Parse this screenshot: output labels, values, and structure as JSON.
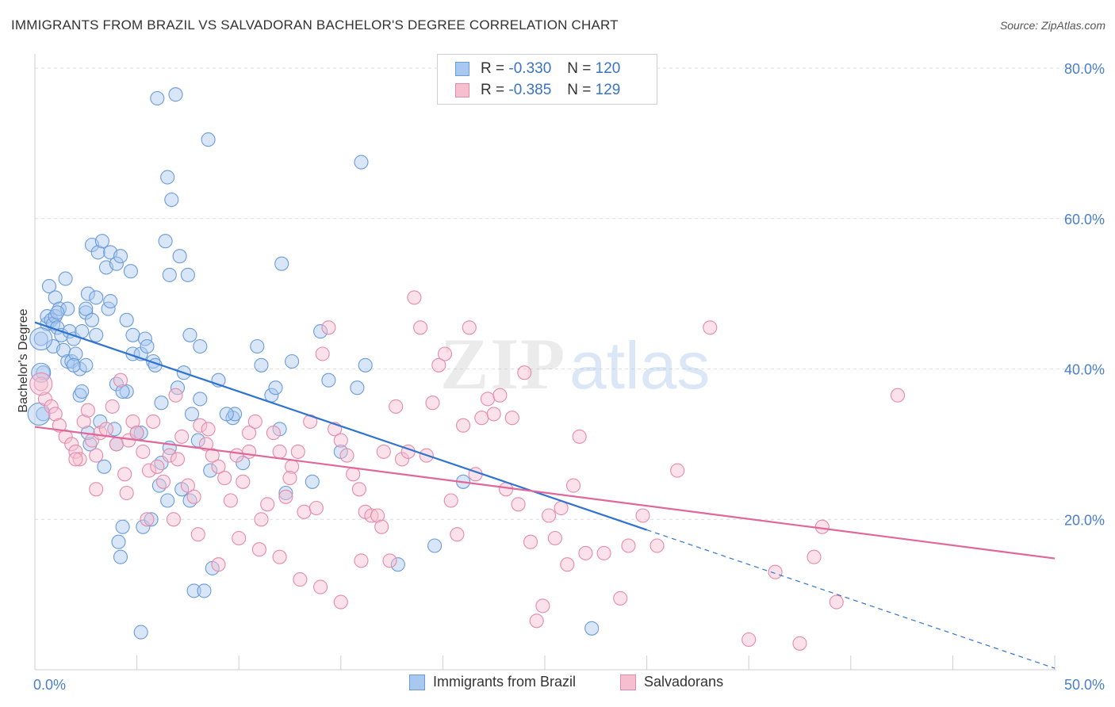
{
  "title": "IMMIGRANTS FROM BRAZIL VS SALVADORAN BACHELOR'S DEGREE CORRELATION CHART",
  "source": "Source: ZipAtlas.com",
  "watermark": {
    "zip": "ZIP",
    "atlas": "atlas"
  },
  "legend": {
    "rows": [
      {
        "r_label": "R =",
        "r_value": "-0.330",
        "n_label": "N =",
        "n_value": "120",
        "color": "#a9c8f0",
        "border": "#6a9bd8"
      },
      {
        "r_label": "R =",
        "r_value": "-0.385",
        "n_label": "N =",
        "n_value": "129",
        "color": "#f6bfd0",
        "border": "#e58aa8"
      }
    ]
  },
  "bottom_legend": [
    {
      "label": "Immigrants from Brazil",
      "color": "#a9c8f0",
      "border": "#6a9bd8"
    },
    {
      "label": "Salvadorans",
      "color": "#f6bfd0",
      "border": "#e58aa8"
    }
  ],
  "chart_data": {
    "type": "scatter",
    "title": "IMMIGRANTS FROM BRAZIL VS SALVADORAN BACHELOR'S DEGREE CORRELATION CHART",
    "xlabel": "",
    "ylabel": "Bachelor's Degree",
    "xlim": [
      0,
      50
    ],
    "ylim": [
      0,
      80
    ],
    "x_tick_labels": [
      "0.0%",
      "50.0%"
    ],
    "y_tick_labels": [
      "20.0%",
      "40.0%",
      "60.0%",
      "80.0%"
    ],
    "y_ticks": [
      20,
      40,
      60,
      80
    ],
    "grid": true,
    "legend_position": "top-center",
    "series": [
      {
        "name": "Immigrants from Brazil",
        "color": "#6a9bd8",
        "fill": "#a9c8f0",
        "r": -0.33,
        "n": 120,
        "trend": {
          "x": [
            0,
            30
          ],
          "y": [
            46.2,
            18.6
          ]
        },
        "trend_dashed": {
          "x": [
            30,
            50
          ],
          "y": [
            18.6,
            0.2
          ]
        },
        "points": [
          [
            0.3,
            44
          ],
          [
            0.4,
            39.5
          ],
          [
            0.4,
            34
          ],
          [
            0.6,
            46
          ],
          [
            0.6,
            47
          ],
          [
            0.7,
            51
          ],
          [
            0.8,
            46.5
          ],
          [
            0.9,
            43
          ],
          [
            0.9,
            46
          ],
          [
            1.0,
            49.5
          ],
          [
            1.0,
            47
          ],
          [
            1.1,
            45.5
          ],
          [
            1.2,
            48
          ],
          [
            1.3,
            44.5
          ],
          [
            1.4,
            42.5
          ],
          [
            1.5,
            52
          ],
          [
            1.6,
            41
          ],
          [
            1.7,
            45
          ],
          [
            1.8,
            41
          ],
          [
            1.9,
            44
          ],
          [
            2.0,
            42
          ],
          [
            2.2,
            40
          ],
          [
            2.2,
            36.5
          ],
          [
            2.3,
            37
          ],
          [
            2.5,
            47.5
          ],
          [
            2.5,
            48
          ],
          [
            2.6,
            50
          ],
          [
            2.8,
            46.5
          ],
          [
            2.8,
            56.5
          ],
          [
            3.0,
            44.5
          ],
          [
            3.0,
            49.5
          ],
          [
            3.1,
            55.5
          ],
          [
            3.3,
            57
          ],
          [
            3.5,
            53.5
          ],
          [
            3.6,
            48
          ],
          [
            3.7,
            55.5
          ],
          [
            3.7,
            49
          ],
          [
            4.0,
            54
          ],
          [
            4.0,
            38
          ],
          [
            4.2,
            55
          ],
          [
            4.5,
            46.5
          ],
          [
            4.5,
            37
          ],
          [
            4.7,
            53
          ],
          [
            4.8,
            42
          ],
          [
            4.8,
            44.5
          ],
          [
            5.2,
            42
          ],
          [
            5.4,
            44
          ],
          [
            5.5,
            43
          ],
          [
            5.8,
            41
          ],
          [
            5.9,
            40.5
          ],
          [
            6.0,
            76
          ],
          [
            6.2,
            35.5
          ],
          [
            6.4,
            57
          ],
          [
            6.5,
            65.5
          ],
          [
            6.6,
            52.5
          ],
          [
            6.7,
            62.5
          ],
          [
            6.9,
            76.5
          ],
          [
            7.0,
            37.5
          ],
          [
            7.1,
            55
          ],
          [
            7.3,
            39.5
          ],
          [
            7.5,
            52.5
          ],
          [
            7.6,
            44.5
          ],
          [
            7.7,
            34
          ],
          [
            8.1,
            43
          ],
          [
            8.1,
            36
          ],
          [
            8.5,
            70.5
          ],
          [
            8.6,
            26.5
          ],
          [
            8.7,
            13.5
          ],
          [
            9.0,
            38.5
          ],
          [
            4.0,
            30
          ],
          [
            4.3,
            19
          ],
          [
            4.1,
            17
          ],
          [
            4.2,
            15
          ],
          [
            5.2,
            31.5
          ],
          [
            5.3,
            19
          ],
          [
            5.7,
            20
          ],
          [
            6.1,
            24.5
          ],
          [
            6.5,
            22.5
          ],
          [
            7.2,
            24
          ],
          [
            7.8,
            10.5
          ],
          [
            8.3,
            10.5
          ],
          [
            9.7,
            33.5
          ],
          [
            9.8,
            34
          ],
          [
            10.2,
            27.5
          ],
          [
            10.9,
            43
          ],
          [
            11.1,
            40.5
          ],
          [
            11.6,
            36.5
          ],
          [
            11.8,
            37.5
          ],
          [
            12.1,
            54
          ],
          [
            12.0,
            32
          ],
          [
            12.3,
            23.5
          ],
          [
            12.6,
            41
          ],
          [
            13.6,
            25
          ],
          [
            14.0,
            45
          ],
          [
            14.4,
            38.5
          ],
          [
            15.0,
            29
          ],
          [
            15.8,
            37.5
          ],
          [
            16.2,
            40.5
          ],
          [
            16.0,
            67.5
          ],
          [
            17.8,
            14
          ],
          [
            19.6,
            16.5
          ],
          [
            21.0,
            25
          ],
          [
            27.3,
            5.5
          ],
          [
            5.2,
            5
          ],
          [
            3.2,
            33
          ],
          [
            2.7,
            30
          ],
          [
            2.6,
            31.5
          ],
          [
            1.9,
            40.5
          ],
          [
            2.3,
            45
          ],
          [
            2.5,
            40.5
          ],
          [
            3.4,
            27
          ],
          [
            4.3,
            37
          ],
          [
            6.2,
            27.5
          ],
          [
            6.6,
            29.5
          ],
          [
            7.6,
            22.5
          ],
          [
            8.0,
            30.5
          ],
          [
            9.4,
            34
          ],
          [
            3.9,
            32
          ],
          [
            5.0,
            31.5
          ],
          [
            1.6,
            48
          ],
          [
            1.1,
            47.5
          ]
        ]
      },
      {
        "name": "Salvadorans",
        "color": "#e58aa8",
        "fill": "#f6bfd0",
        "r": -0.385,
        "n": 129,
        "trend": {
          "x": [
            0,
            50
          ],
          "y": [
            32.3,
            14.8
          ]
        },
        "points": [
          [
            0.3,
            38
          ],
          [
            0.5,
            36
          ],
          [
            0.8,
            35
          ],
          [
            1.0,
            34
          ],
          [
            1.2,
            32.5
          ],
          [
            1.5,
            31
          ],
          [
            1.8,
            30
          ],
          [
            2.0,
            29
          ],
          [
            2.2,
            28
          ],
          [
            2.4,
            33
          ],
          [
            2.6,
            34.5
          ],
          [
            2.8,
            30.5
          ],
          [
            3.0,
            28.5
          ],
          [
            3.2,
            31.5
          ],
          [
            3.5,
            32
          ],
          [
            3.8,
            35
          ],
          [
            4.0,
            30
          ],
          [
            4.2,
            38.5
          ],
          [
            4.4,
            26
          ],
          [
            4.6,
            30.5
          ],
          [
            4.8,
            33
          ],
          [
            5.0,
            31.5
          ],
          [
            5.3,
            29
          ],
          [
            5.6,
            26.5
          ],
          [
            5.8,
            33
          ],
          [
            6.0,
            27
          ],
          [
            6.3,
            25
          ],
          [
            6.6,
            28.5
          ],
          [
            6.9,
            36.5
          ],
          [
            7.2,
            31
          ],
          [
            7.5,
            24.5
          ],
          [
            7.8,
            23
          ],
          [
            8.1,
            32.5
          ],
          [
            8.4,
            30
          ],
          [
            8.7,
            28.5
          ],
          [
            9.0,
            27
          ],
          [
            9.3,
            25.5
          ],
          [
            9.6,
            22.5
          ],
          [
            9.9,
            28.5
          ],
          [
            10.2,
            25
          ],
          [
            10.5,
            31.5
          ],
          [
            10.8,
            33
          ],
          [
            11.1,
            20
          ],
          [
            11.4,
            22
          ],
          [
            11.7,
            31.5
          ],
          [
            12.0,
            29
          ],
          [
            12.3,
            23
          ],
          [
            12.6,
            27
          ],
          [
            12.9,
            29
          ],
          [
            13.2,
            21
          ],
          [
            13.5,
            33
          ],
          [
            13.8,
            21.5
          ],
          [
            14.1,
            42
          ],
          [
            14.4,
            45.5
          ],
          [
            14.7,
            32
          ],
          [
            15.0,
            30.5
          ],
          [
            15.3,
            28.5
          ],
          [
            15.6,
            26
          ],
          [
            15.9,
            24
          ],
          [
            16.2,
            21
          ],
          [
            16.5,
            20.5
          ],
          [
            16.8,
            20.5
          ],
          [
            17.1,
            29
          ],
          [
            17.4,
            14.5
          ],
          [
            17.7,
            35
          ],
          [
            18.0,
            28
          ],
          [
            18.3,
            29
          ],
          [
            18.6,
            49.5
          ],
          [
            18.9,
            45.5
          ],
          [
            19.2,
            28.5
          ],
          [
            19.5,
            35.5
          ],
          [
            19.8,
            40.5
          ],
          [
            20.1,
            42
          ],
          [
            20.4,
            22.5
          ],
          [
            20.7,
            18
          ],
          [
            21.0,
            32.5
          ],
          [
            21.3,
            45.5
          ],
          [
            21.6,
            26
          ],
          [
            21.9,
            33.5
          ],
          [
            22.2,
            36
          ],
          [
            22.5,
            34
          ],
          [
            22.8,
            36.5
          ],
          [
            23.1,
            24
          ],
          [
            23.4,
            33.5
          ],
          [
            23.7,
            22
          ],
          [
            24.0,
            39.5
          ],
          [
            24.3,
            17
          ],
          [
            24.6,
            6.5
          ],
          [
            24.9,
            8.5
          ],
          [
            25.2,
            20.5
          ],
          [
            25.5,
            17.5
          ],
          [
            25.8,
            21.5
          ],
          [
            26.1,
            14
          ],
          [
            26.4,
            24.5
          ],
          [
            26.7,
            31
          ],
          [
            27.0,
            15.5
          ],
          [
            27.9,
            15.5
          ],
          [
            28.7,
            9.5
          ],
          [
            29.1,
            16.5
          ],
          [
            29.8,
            20.5
          ],
          [
            30.5,
            16.5
          ],
          [
            31.5,
            26.5
          ],
          [
            33.1,
            45.5
          ],
          [
            35.0,
            4
          ],
          [
            36.3,
            13
          ],
          [
            37.5,
            3.5
          ],
          [
            38.2,
            15
          ],
          [
            38.6,
            19
          ],
          [
            39.3,
            9
          ],
          [
            42.3,
            36.5
          ],
          [
            2.0,
            28
          ],
          [
            3.0,
            24
          ],
          [
            4.5,
            23.5
          ],
          [
            5.5,
            20
          ],
          [
            6.8,
            20
          ],
          [
            8.0,
            18
          ],
          [
            9.0,
            14
          ],
          [
            10.0,
            17.5
          ],
          [
            11.0,
            16
          ],
          [
            12.0,
            15
          ],
          [
            13.0,
            12
          ],
          [
            14.0,
            11
          ],
          [
            15.0,
            9
          ],
          [
            16.0,
            14.5
          ],
          [
            17.0,
            19
          ],
          [
            7.0,
            28
          ],
          [
            8.5,
            32
          ],
          [
            10.5,
            29
          ],
          [
            12.5,
            25.5
          ]
        ]
      }
    ]
  }
}
